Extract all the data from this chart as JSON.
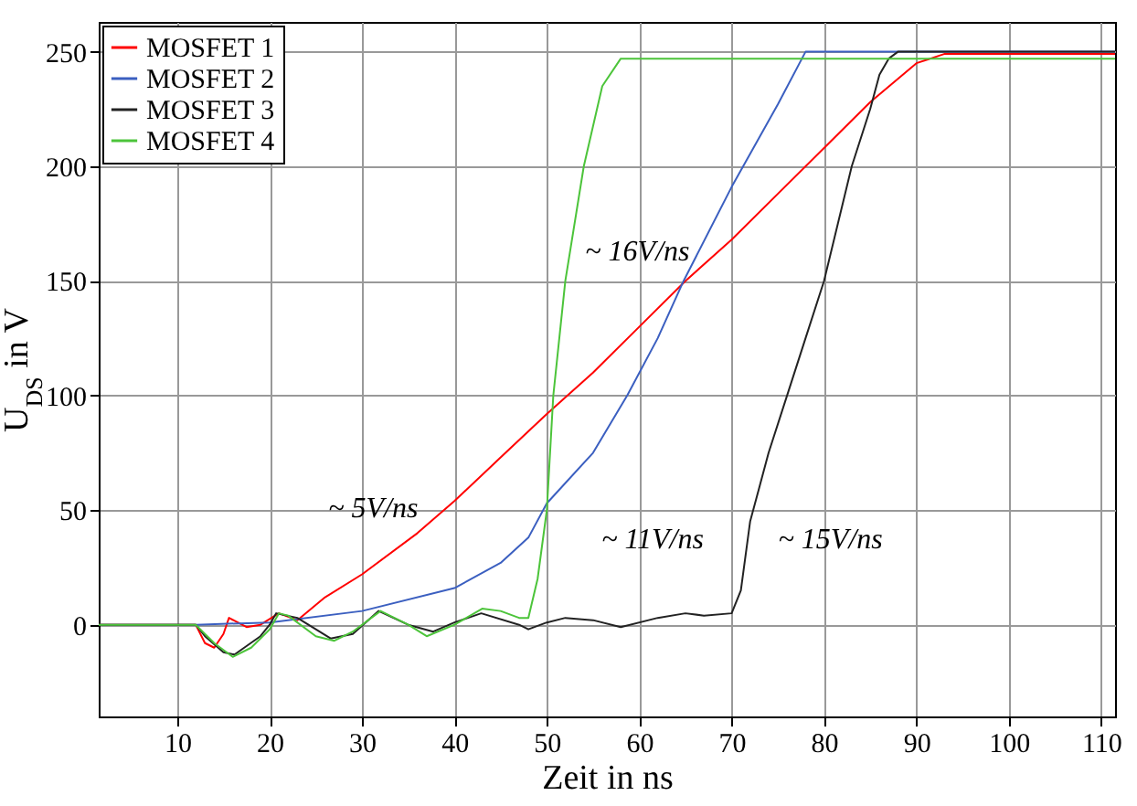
{
  "chart_data": {
    "type": "line",
    "xlabel": "Zeit in ns",
    "ylabel": "U$_{DS}$ in V",
    "xlim": [
      1.5,
      111.5
    ],
    "ylim": [
      -40,
      263
    ],
    "xticks": [
      10,
      20,
      30,
      40,
      50,
      60,
      70,
      80,
      90,
      100,
      110
    ],
    "yticks": [
      0,
      50,
      100,
      150,
      200,
      250
    ],
    "grid": true,
    "legend": "top left",
    "series": [
      {
        "name": "MOSFET 1",
        "color": "#ff0000",
        "x": [
          1.5,
          12,
          13,
          14,
          15,
          15.6,
          17.5,
          19,
          21,
          23,
          26,
          30,
          36,
          40,
          45,
          50,
          55,
          60,
          65,
          70,
          75,
          80,
          85,
          90,
          93,
          111.5
        ],
        "values": [
          0,
          0,
          -8,
          -10,
          -4,
          3,
          -1,
          0,
          5,
          2,
          12,
          22,
          40,
          54,
          73,
          92,
          110,
          130,
          150,
          168,
          188,
          208,
          228,
          245,
          249,
          249
        ]
      },
      {
        "name": "MOSFET 2",
        "color": "#3b5fc0",
        "x": [
          1.5,
          12,
          20,
          30,
          40,
          45,
          48,
          50,
          55,
          58.7,
          62,
          64.8,
          70,
          75,
          78,
          111.5
        ],
        "values": [
          0,
          0,
          1,
          6,
          16,
          27,
          38,
          53,
          75,
          100,
          125,
          150,
          191,
          227,
          250,
          250
        ]
      },
      {
        "name": "MOSFET 3",
        "color": "#222222",
        "x": [
          1.5,
          12,
          13,
          15,
          16.2,
          19,
          20,
          20.7,
          23,
          26.6,
          29,
          31.8,
          35,
          37.7,
          40,
          42.9,
          47,
          48,
          50,
          52,
          55,
          58,
          62,
          65,
          67,
          70,
          71,
          72,
          73,
          74,
          76,
          78,
          80,
          81.5,
          83,
          85,
          86,
          87,
          88,
          111.5
        ],
        "values": [
          0,
          0,
          -5,
          -12,
          -13,
          -5,
          0,
          5,
          3,
          -6,
          -4,
          6,
          0,
          -3,
          1,
          5,
          0,
          -2,
          1,
          3,
          2,
          -1,
          3,
          5,
          4,
          5,
          15,
          45,
          60,
          75,
          100,
          125,
          150,
          175,
          200,
          225,
          240,
          247,
          250,
          250
        ]
      },
      {
        "name": "MOSFET 4",
        "color": "#4cc43a",
        "x": [
          1.5,
          12,
          14,
          16,
          18,
          20,
          21,
          22,
          25,
          27,
          29,
          32,
          35,
          37,
          40,
          43,
          45,
          47,
          48,
          49,
          50,
          50.7,
          52,
          54,
          56,
          58,
          60,
          111.5
        ],
        "values": [
          0,
          0,
          -8,
          -14,
          -10,
          -2,
          5,
          4,
          -5,
          -7,
          -3,
          6,
          0,
          -5,
          0,
          7,
          6,
          3,
          3,
          20,
          50,
          100,
          150,
          200,
          235,
          247,
          247,
          247
        ]
      }
    ],
    "annotations": [
      "~ 5V/ns",
      "~ 11V/ns",
      "~ 15V/ns",
      "~ 16V/ns"
    ]
  }
}
